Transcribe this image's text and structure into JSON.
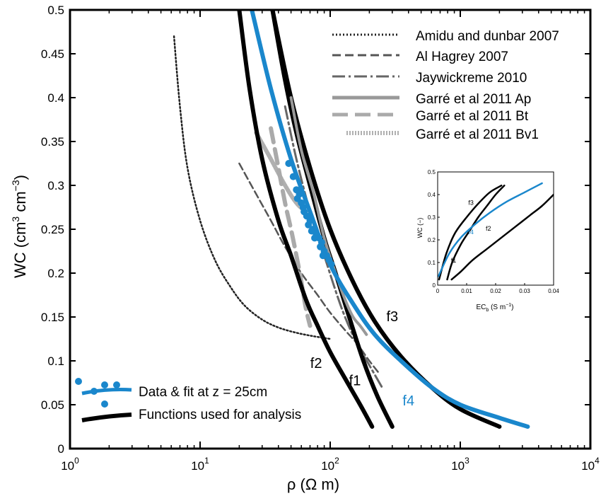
{
  "chart_data": [
    {
      "type": "line",
      "title": "",
      "xlabel": "ρ (Ω m)",
      "ylabel_main": "WC (cm",
      "ylabel_sup1": "3",
      "ylabel_mid": " cm",
      "ylabel_sup2": "−3",
      "ylabel_end": ")",
      "xscale": "log",
      "xlim": [
        1,
        10000
      ],
      "ylim": [
        0,
        0.5
      ],
      "x_ticks": [
        {
          "v": 1,
          "base": "10",
          "exp": "0"
        },
        {
          "v": 10,
          "base": "10",
          "exp": "1"
        },
        {
          "v": 100,
          "base": "10",
          "exp": "2"
        },
        {
          "v": 1000,
          "base": "10",
          "exp": "3"
        },
        {
          "v": 10000,
          "base": "10",
          "exp": "4"
        }
      ],
      "y_ticks": [
        {
          "v": 0,
          "label": "0"
        },
        {
          "v": 0.05,
          "label": "0.05"
        },
        {
          "v": 0.1,
          "label": "0.1"
        },
        {
          "v": 0.15,
          "label": "0.15"
        },
        {
          "v": 0.2,
          "label": "0.2"
        },
        {
          "v": 0.25,
          "label": "0.25"
        },
        {
          "v": 0.3,
          "label": "0.3"
        },
        {
          "v": 0.35,
          "label": "0.35"
        },
        {
          "v": 0.4,
          "label": "0.4"
        },
        {
          "v": 0.45,
          "label": "0.45"
        },
        {
          "v": 0.5,
          "label": "0.5"
        }
      ],
      "grid": false,
      "legend_top_right": [
        {
          "label": "Amidu and dunbar 2007",
          "series": "amidu"
        },
        {
          "label": "Al Hagrey 2007",
          "series": "alhagrey"
        },
        {
          "label": "Jaywickreme 2010",
          "series": "jaywick"
        },
        {
          "label": "Garré et al 2011 Ap",
          "series": "garre_ap"
        },
        {
          "label": "Garré et al 2011 Bt",
          "series": "garre_bt"
        },
        {
          "label": "Garré et al 2011 Bv1",
          "series": "garre_bv1"
        }
      ],
      "legend_bottom_left": [
        {
          "label": "Data & fit at z = 25cm",
          "series": "fit"
        },
        {
          "label": "Functions used for analysis",
          "series": "functions"
        }
      ],
      "series": [
        {
          "id": "amidu",
          "color": "#222222",
          "style": "dotted",
          "x": [
            6.3,
            7,
            8,
            10,
            13,
            17,
            22,
            30,
            40,
            55,
            75,
            100
          ],
          "y": [
            0.47,
            0.39,
            0.32,
            0.26,
            0.215,
            0.185,
            0.163,
            0.147,
            0.138,
            0.132,
            0.128,
            0.125
          ]
        },
        {
          "id": "alhagrey",
          "color": "#555555",
          "style": "dashed",
          "x": [
            20,
            27,
            35,
            45,
            60,
            80,
            100,
            130,
            160,
            200,
            240
          ],
          "y": [
            0.325,
            0.29,
            0.26,
            0.23,
            0.2,
            0.175,
            0.155,
            0.135,
            0.12,
            0.1,
            0.085
          ]
        },
        {
          "id": "jaywick",
          "color": "#666666",
          "style": "dashdot",
          "x": [
            45,
            55,
            70,
            90,
            110,
            130,
            160,
            200,
            250
          ],
          "y": [
            0.39,
            0.33,
            0.27,
            0.22,
            0.18,
            0.15,
            0.12,
            0.095,
            0.07
          ]
        },
        {
          "id": "garre_ap",
          "color": "#999999",
          "style": "solid",
          "x": [
            50,
            60,
            75,
            90,
            110,
            130,
            150,
            170,
            190
          ],
          "y": [
            0.4,
            0.34,
            0.29,
            0.24,
            0.2,
            0.17,
            0.15,
            0.14,
            0.13
          ]
        },
        {
          "id": "garre_bt",
          "color": "#aaaaaa",
          "style": "dashed-thick",
          "x": [
            35,
            40,
            45,
            50,
            55,
            60,
            65,
            70
          ],
          "y": [
            0.365,
            0.32,
            0.28,
            0.25,
            0.22,
            0.19,
            0.16,
            0.14
          ]
        },
        {
          "id": "garre_bv1",
          "color": "#b0b0b0",
          "style": "dotted-thick",
          "x": [
            27,
            35,
            45,
            55,
            65
          ],
          "y": [
            0.36,
            0.33,
            0.3,
            0.28,
            0.27
          ]
        },
        {
          "id": "f1",
          "label": "f1",
          "color": "#000000",
          "style": "solid",
          "width": 6,
          "x": [
            36,
            45,
            55,
            70,
            90,
            110,
            140,
            180,
            230,
            300
          ],
          "y": [
            0.5,
            0.42,
            0.36,
            0.3,
            0.24,
            0.2,
            0.15,
            0.1,
            0.06,
            0.025
          ]
        },
        {
          "id": "f2",
          "label": "f2",
          "color": "#000000",
          "style": "solid",
          "width": 6,
          "x": [
            20,
            24,
            30,
            40,
            50,
            65,
            80,
            100,
            130,
            170,
            210
          ],
          "y": [
            0.5,
            0.41,
            0.33,
            0.26,
            0.22,
            0.17,
            0.14,
            0.11,
            0.08,
            0.05,
            0.025
          ]
        },
        {
          "id": "f3",
          "label": "f3",
          "color": "#000000",
          "style": "solid",
          "width": 6,
          "x": [
            36,
            50,
            70,
            100,
            150,
            220,
            350,
            600,
            1000,
            2000
          ],
          "y": [
            0.5,
            0.4,
            0.32,
            0.25,
            0.19,
            0.145,
            0.105,
            0.07,
            0.045,
            0.025
          ]
        },
        {
          "id": "f4",
          "label": "f4",
          "color": "#1a87cc",
          "style": "solid",
          "width": 6,
          "x": [
            25,
            35,
            50,
            70,
            100,
            150,
            220,
            350,
            600,
            1000,
            2000,
            3300
          ],
          "y": [
            0.5,
            0.41,
            0.33,
            0.27,
            0.21,
            0.165,
            0.13,
            0.1,
            0.07,
            0.05,
            0.035,
            0.025
          ]
        }
      ],
      "data_points": {
        "color": "#1a87cc",
        "x": [
          48,
          52,
          55,
          58,
          60,
          63,
          66,
          70,
          74,
          78,
          82,
          86,
          90,
          94,
          98,
          102,
          56,
          62,
          68,
          72,
          76,
          84,
          88
        ],
        "y": [
          0.325,
          0.31,
          0.295,
          0.29,
          0.28,
          0.27,
          0.265,
          0.26,
          0.25,
          0.245,
          0.24,
          0.235,
          0.225,
          0.22,
          0.215,
          0.21,
          0.285,
          0.275,
          0.255,
          0.248,
          0.24,
          0.23,
          0.22
        ]
      },
      "curve_labels": [
        {
          "text": "f1",
          "x": 155,
          "y": 0.072,
          "color": "#000000"
        },
        {
          "text": "f2",
          "x": 78,
          "y": 0.092,
          "color": "#000000"
        },
        {
          "text": "f3",
          "x": 300,
          "y": 0.145,
          "color": "#000000"
        },
        {
          "text": "f4",
          "x": 400,
          "y": 0.049,
          "color": "#1a87cc"
        }
      ]
    },
    {
      "type": "line",
      "title": "",
      "ylabel": "WC (−)",
      "xlabel_main": "EC",
      "xlabel_sub": "b",
      "xlabel_unit": " (S m",
      "xlabel_sup": "−1",
      "xlabel_end": ")",
      "xlim": [
        0,
        0.04
      ],
      "ylim": [
        0,
        0.5
      ],
      "x_ticks": [
        {
          "v": 0,
          "label": "0"
        },
        {
          "v": 0.01,
          "label": "0.01"
        },
        {
          "v": 0.02,
          "label": "0.02"
        },
        {
          "v": 0.03,
          "label": "0.03"
        },
        {
          "v": 0.04,
          "label": "0.04"
        }
      ],
      "y_ticks": [
        {
          "v": 0,
          "label": "0"
        },
        {
          "v": 0.1,
          "label": "0.1"
        },
        {
          "v": 0.2,
          "label": "0.2"
        },
        {
          "v": 0.3,
          "label": "0.3"
        },
        {
          "v": 0.4,
          "label": "0.4"
        },
        {
          "v": 0.5,
          "label": "0.5"
        }
      ],
      "series": [
        {
          "id": "i_f1",
          "label": "f1",
          "color": "#000000",
          "x": [
            0.0033,
            0.005,
            0.008,
            0.011,
            0.014,
            0.017,
            0.02,
            0.023
          ],
          "y": [
            0.025,
            0.1,
            0.18,
            0.24,
            0.3,
            0.35,
            0.4,
            0.44
          ]
        },
        {
          "id": "i_f2",
          "label": "f2",
          "color": "#000000",
          "x": [
            0.0048,
            0.008,
            0.012,
            0.017,
            0.022,
            0.027,
            0.032,
            0.036,
            0.04
          ],
          "y": [
            0.025,
            0.06,
            0.11,
            0.16,
            0.21,
            0.26,
            0.31,
            0.35,
            0.4
          ]
        },
        {
          "id": "i_f3",
          "label": "f3",
          "color": "#000000",
          "x": [
            0.0005,
            0.003,
            0.006,
            0.01,
            0.014,
            0.018,
            0.022
          ],
          "y": [
            0.025,
            0.14,
            0.23,
            0.3,
            0.36,
            0.41,
            0.44
          ]
        },
        {
          "id": "i_f4",
          "label": "f4",
          "color": "#1a87cc",
          "x": [
            0.0003,
            0.004,
            0.008,
            0.013,
            0.018,
            0.024,
            0.03,
            0.036
          ],
          "y": [
            0.04,
            0.14,
            0.21,
            0.27,
            0.32,
            0.37,
            0.41,
            0.45
          ]
        }
      ],
      "curve_labels": [
        {
          "text": "f3",
          "x": 0.0115,
          "y": 0.355,
          "color": "#000000"
        },
        {
          "text": "f4",
          "x": 0.0115,
          "y": 0.225,
          "color": "#1a87cc"
        },
        {
          "text": "f2",
          "x": 0.0175,
          "y": 0.24,
          "color": "#000000"
        },
        {
          "text": "f1",
          "x": 0.0055,
          "y": 0.1,
          "color": "#000000"
        }
      ]
    }
  ]
}
